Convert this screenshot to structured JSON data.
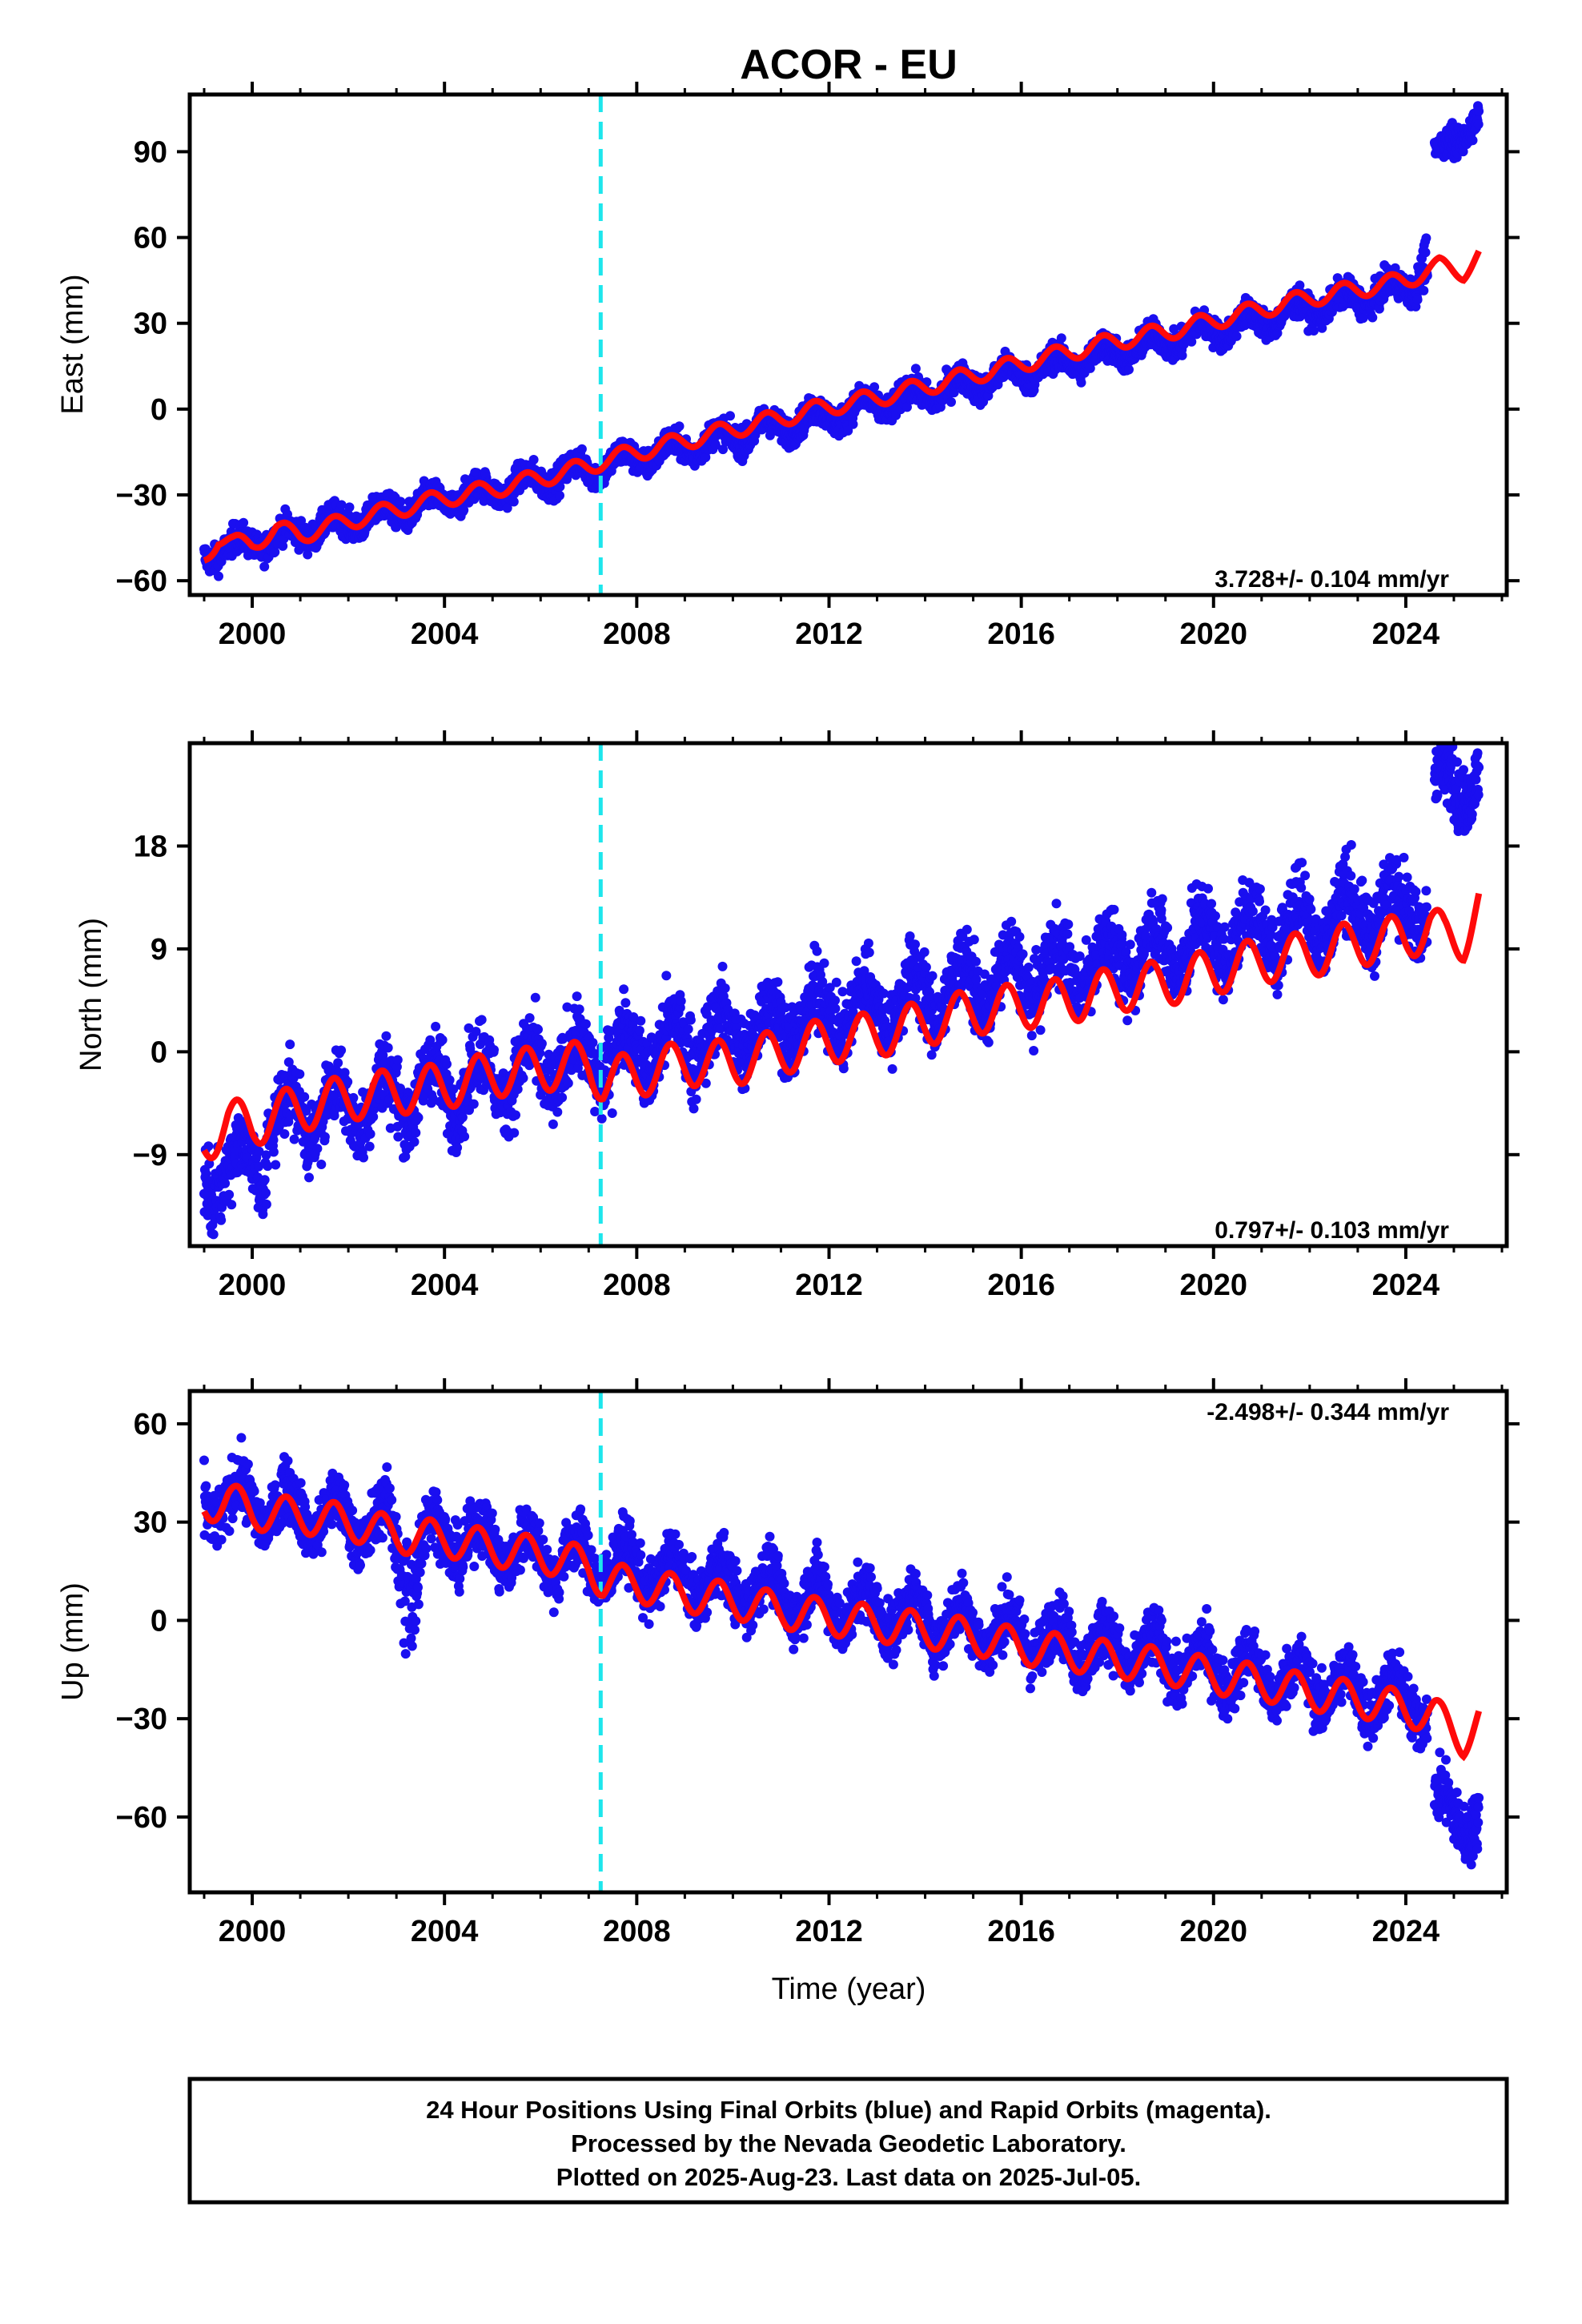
{
  "title": "ACOR - EU",
  "xlabel": "Time (year)",
  "colors": {
    "data_points": "#1a0ff0",
    "model_line": "#ff0a0a",
    "event_marker": "#1de6ec",
    "frame": "#000000"
  },
  "chart_data": [
    {
      "type": "scatter",
      "component": "East",
      "ylabel": "East (mm)",
      "rate_label": "3.728+/- 0.104 mm/yr",
      "xlim": [
        1998.7,
        2026.1
      ],
      "ylim": [
        -65,
        110
      ],
      "xticks": [
        2000,
        2004,
        2008,
        2012,
        2016,
        2020,
        2024
      ],
      "xtick_labels": [
        "2000",
        "2004",
        "2008",
        "2012",
        "2016",
        "2020",
        "2024"
      ],
      "yticks": [
        -60,
        -30,
        0,
        30,
        60,
        90
      ],
      "ytick_labels": [
        "−60",
        "−30",
        "0",
        "30",
        "60",
        "90"
      ],
      "event_line_x": 2007.25,
      "series": [
        {
          "kind": "points",
          "color": "#1a0ff0",
          "trend": {
            "t0": 1999.0,
            "y0": -50.5,
            "rate": 3.728,
            "seasonal_amp": 3.2,
            "seasonal_phase": 0.45,
            "noise": 2.5
          },
          "segments": [
            {
              "from": 1999.0,
              "to": 2024.45,
              "offset": 0
            },
            {
              "from": 2024.6,
              "to": 2025.52,
              "offset": 43,
              "slope_extra": 12
            }
          ],
          "spike": {
            "from": 2024.2,
            "to": 2024.45,
            "rise": 22
          }
        },
        {
          "kind": "model",
          "color": "#ff0a0a",
          "x": [
            1999.0,
            1999.3,
            1999.6,
            2000.0,
            2000.5,
            2001.0,
            2002.0,
            2003.0,
            2004.0,
            2005.0,
            2006.0,
            2007.0,
            2007.3,
            2008.0,
            2009.0,
            2010.0,
            2011.0,
            2012.0,
            2013.0,
            2014.0,
            2015.0,
            2016.0,
            2017.0,
            2018.0,
            2019.0,
            2020.0,
            2021.0,
            2022.0,
            2023.0,
            2024.0,
            2024.4,
            2024.7,
            2025.2,
            2025.52
          ],
          "base": [
            -52,
            -45,
            -47,
            -47,
            -42,
            -44,
            -39,
            -35,
            -31,
            -28,
            -24,
            -20,
            -18,
            -15,
            -11,
            -7,
            -3,
            1,
            4,
            8,
            12,
            16,
            20,
            24,
            27,
            31,
            35,
            39,
            42,
            45,
            48,
            50,
            48,
            54
          ],
          "seasonal_amp": 3.0
        }
      ]
    },
    {
      "type": "scatter",
      "component": "North",
      "ylabel": "North (mm)",
      "rate_label": "0.797+/- 0.103 mm/yr",
      "xlim": [
        1998.7,
        2026.1
      ],
      "ylim": [
        -17,
        27
      ],
      "xticks": [
        2000,
        2004,
        2008,
        2012,
        2016,
        2020,
        2024
      ],
      "xtick_labels": [
        "2000",
        "2004",
        "2008",
        "2012",
        "2016",
        "2020",
        "2024"
      ],
      "yticks": [
        -9,
        0,
        9,
        18
      ],
      "ytick_labels": [
        "−9",
        "0",
        "9",
        "18"
      ],
      "event_line_x": 2007.25,
      "series": [
        {
          "kind": "points",
          "color": "#1a0ff0",
          "trend": {
            "t0": 1999.0,
            "y0": -7.0,
            "rate": 0.797,
            "seasonal_amp": 2.3,
            "seasonal_phase": 0.5,
            "noise": 1.6
          },
          "segments": [
            {
              "from": 1999.0,
              "to": 2024.45,
              "offset": 0
            },
            {
              "from": 2024.6,
              "to": 2025.52,
              "offset": 9.5,
              "slope_extra": 0
            }
          ],
          "early_step": {
            "until": 2000.3,
            "offset": -3.5
          }
        },
        {
          "kind": "model",
          "color": "#ff0a0a",
          "x": [
            1999.0,
            1999.5,
            2000.0,
            2000.4,
            2001.0,
            2002.0,
            2003.0,
            2004.0,
            2005.0,
            2006.0,
            2007.0,
            2007.3,
            2008.0,
            2009.0,
            2010.0,
            2011.0,
            2012.0,
            2013.0,
            2014.0,
            2015.0,
            2016.0,
            2017.0,
            2018.0,
            2019.0,
            2020.0,
            2021.0,
            2022.0,
            2023.0,
            2024.0,
            2024.5,
            2024.8,
            2025.2,
            2025.52
          ],
          "base": [
            -8,
            -6,
            -6.5,
            -5.5,
            -5,
            -4,
            -3.5,
            -3,
            -2,
            -1.5,
            -1,
            -2.5,
            -2,
            -1,
            -1,
            0,
            1,
            1.5,
            2.5,
            3.5,
            4,
            4.5,
            5.5,
            6,
            7,
            8,
            8.5,
            9.5,
            10,
            11,
            10,
            10,
            13
          ],
          "seasonal_amp": 2.0
        }
      ]
    },
    {
      "type": "scatter",
      "component": "Up",
      "ylabel": "Up (mm)",
      "rate_label": "-2.498+/- 0.344 mm/yr",
      "xlim": [
        1998.7,
        2026.1
      ],
      "ylim": [
        -83,
        70
      ],
      "xticks": [
        2000,
        2004,
        2008,
        2012,
        2016,
        2020,
        2024
      ],
      "xtick_labels": [
        "2000",
        "2004",
        "2008",
        "2012",
        "2016",
        "2020",
        "2024"
      ],
      "yticks": [
        -60,
        -30,
        0,
        30,
        60
      ],
      "ytick_labels": [
        "−60",
        "−30",
        "0",
        "30",
        "60"
      ],
      "event_line_x": 2007.25,
      "series": [
        {
          "kind": "points",
          "color": "#1a0ff0",
          "trend": {
            "t0": 1999.0,
            "y0": 38.0,
            "rate": -2.498,
            "seasonal_amp": 6.5,
            "seasonal_phase": 0.5,
            "noise": 4.5
          },
          "segments": [
            {
              "from": 1999.0,
              "to": 2024.45,
              "offset": 0
            },
            {
              "from": 2024.6,
              "to": 2025.52,
              "offset": -32,
              "slope_extra": 0
            }
          ],
          "dip": {
            "from": 2002.9,
            "to": 2003.6,
            "depth": 28
          }
        },
        {
          "kind": "model",
          "color": "#ff0a0a",
          "x": [
            1999.0,
            1999.5,
            2000.0,
            2001.0,
            2002.0,
            2003.0,
            2004.0,
            2005.0,
            2006.0,
            2007.0,
            2007.3,
            2008.0,
            2009.0,
            2010.0,
            2011.0,
            2012.0,
            2013.0,
            2014.0,
            2015.0,
            2016.0,
            2017.0,
            2018.0,
            2019.0,
            2020.0,
            2021.0,
            2022.0,
            2023.0,
            2024.0,
            2024.6,
            2025.2,
            2025.52
          ],
          "base": [
            35,
            37,
            33,
            32,
            30,
            26,
            25,
            22,
            20,
            17,
            12,
            11,
            8,
            6,
            3,
            1,
            -1,
            -3,
            -5,
            -8,
            -10,
            -12,
            -14,
            -17,
            -19,
            -22,
            -24,
            -27,
            -29,
            -36,
            -30
          ],
          "seasonal_amp": 5.5
        }
      ]
    }
  ],
  "footer": {
    "line1": "24 Hour Positions Using Final Orbits (blue) and Rapid Orbits (magenta).",
    "line2": "Processed by the Nevada Geodetic Laboratory.",
    "line3": "Plotted on 2025-Aug-23. Last data on 2025-Jul-05."
  }
}
